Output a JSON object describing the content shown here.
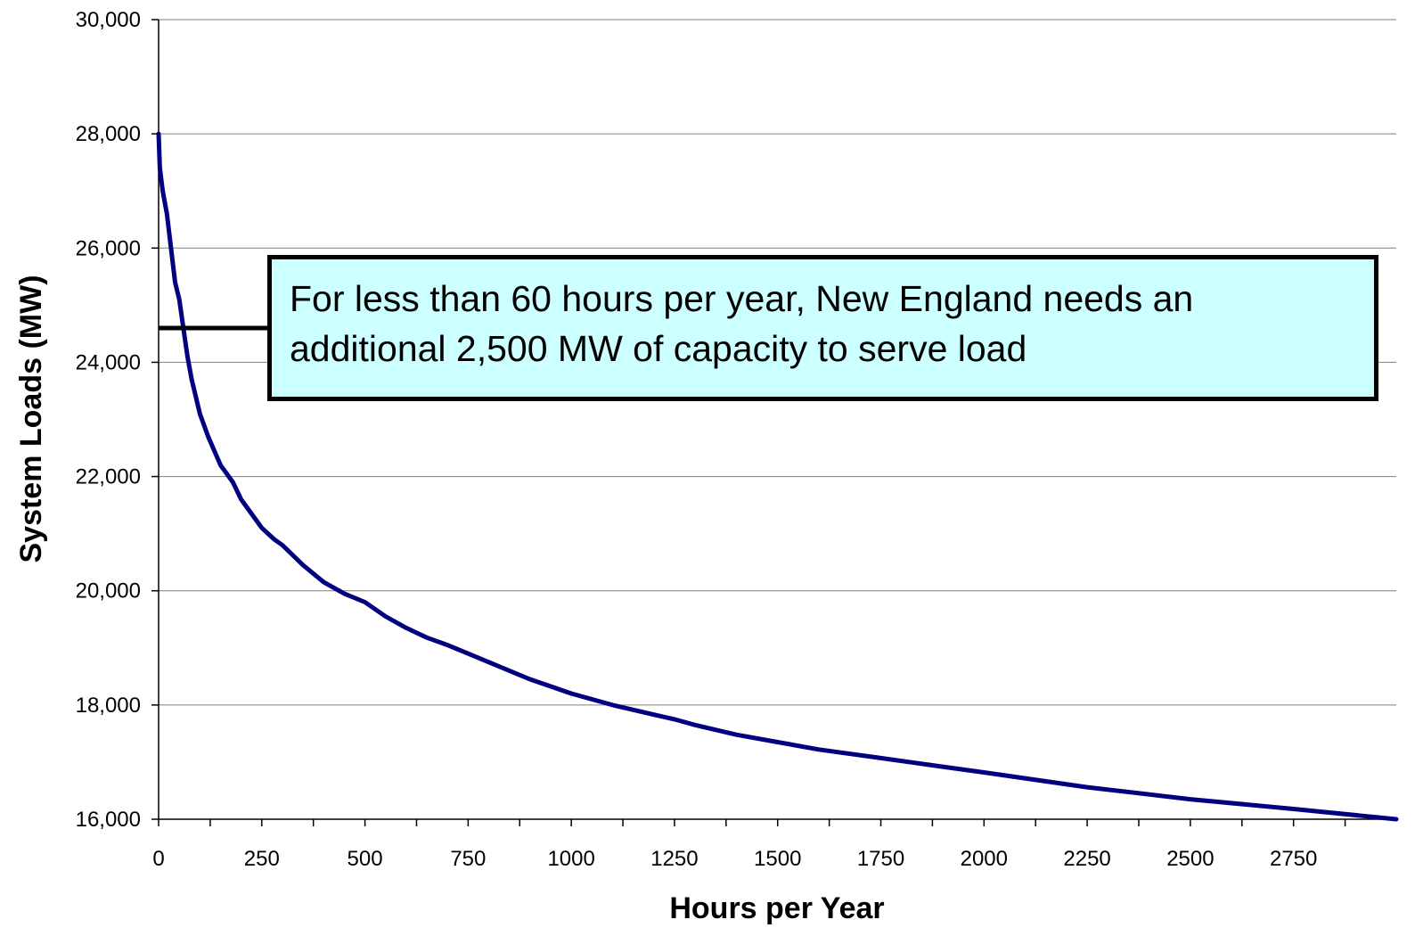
{
  "chart_data": {
    "type": "line",
    "xlabel": "Hours per Year",
    "ylabel": "System Loads (MW)",
    "xlim": [
      0,
      2999
    ],
    "ylim": [
      16000,
      30000
    ],
    "x_ticks": [
      0,
      250,
      500,
      750,
      1000,
      1250,
      1500,
      1750,
      2000,
      2250,
      2500,
      2750
    ],
    "x_tick_labels": [
      "0",
      "250",
      "500",
      "750",
      "1000",
      "1250",
      "1500",
      "1750",
      "2000",
      "2250",
      "2500",
      "2750"
    ],
    "y_ticks": [
      16000,
      18000,
      20000,
      22000,
      24000,
      26000,
      28000,
      30000
    ],
    "y_tick_labels": [
      "16,000",
      "18,000",
      "20,000",
      "22,000",
      "24,000",
      "26,000",
      "28,000",
      "30,000"
    ],
    "grid": "horizontal",
    "series": [
      {
        "color": "#000080",
        "x": [
          0,
          3,
          10,
          20,
          30,
          40,
          50,
          60,
          70,
          80,
          100,
          120,
          150,
          180,
          200,
          230,
          250,
          280,
          300,
          350,
          400,
          450,
          500,
          550,
          600,
          650,
          700,
          750,
          800,
          900,
          1000,
          1100,
          1200,
          1250,
          1300,
          1400,
          1500,
          1600,
          1750,
          1900,
          2000,
          2250,
          2500,
          2750,
          2999
        ],
        "y": [
          28000,
          27400,
          27000,
          26600,
          26000,
          25400,
          25100,
          24600,
          24100,
          23700,
          23100,
          22700,
          22200,
          21900,
          21600,
          21300,
          21100,
          20900,
          20800,
          20450,
          20150,
          19950,
          19800,
          19550,
          19350,
          19180,
          19050,
          18900,
          18750,
          18450,
          18200,
          18000,
          17830,
          17750,
          17650,
          17480,
          17350,
          17220,
          17070,
          16920,
          16820,
          16560,
          16350,
          16180,
          16000
        ]
      }
    ],
    "annotations": [
      {
        "text": "For less than 60 hours per year, New England needs an additional 2,500 MW of capacity to serve load",
        "y": 24600,
        "x_end": 270
      }
    ]
  }
}
